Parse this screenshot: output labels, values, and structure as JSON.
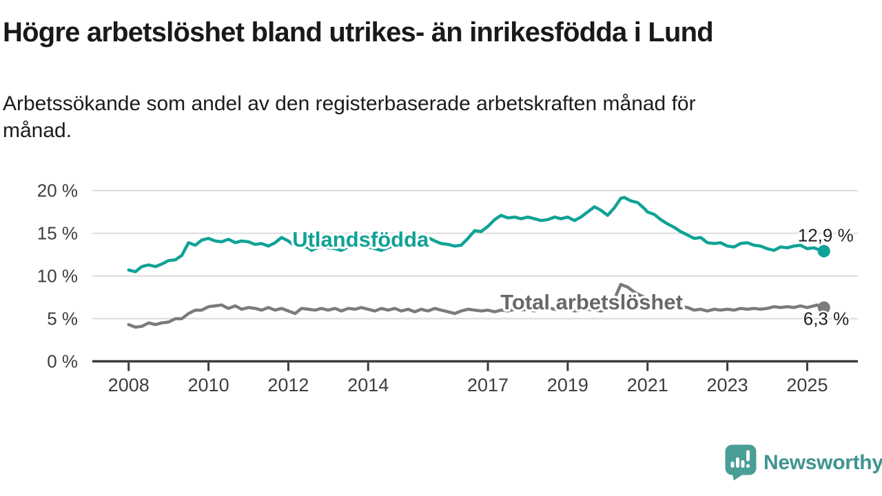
{
  "header": {
    "title": "Högre arbetslöshet bland utrikes- än inrikesfödda i Lund",
    "subtitle_line1": "Arbetssökande som andel av den registerbaserade arbetskraften månad för",
    "subtitle_line2": "månad."
  },
  "footer": {
    "brand": "Newsworthy",
    "logo_icon": "newsworthy-speech-bubble-bar-chart-icon",
    "brand_color": "#3f948e",
    "icon_color": "#4a9e97"
  },
  "chart_data": {
    "type": "line",
    "unit": "%",
    "grid": "horizontal",
    "x_axis": {
      "tick_years": [
        2008,
        2010,
        2012,
        2014,
        2017,
        2019,
        2021,
        2023,
        2025
      ],
      "range_years": [
        2007.09,
        2026.27
      ]
    },
    "y_axis": {
      "ticks": [
        {
          "label": "0 %",
          "value": 0
        },
        {
          "label": "5 %",
          "value": 5
        },
        {
          "label": "10 %",
          "value": 10
        },
        {
          "label": "15 %",
          "value": 15
        },
        {
          "label": "20 %",
          "value": 20
        }
      ],
      "range": [
        0,
        21
      ]
    },
    "series": [
      {
        "name": "Utlandsfödda",
        "color": "#10a296",
        "label_color": "#10a296",
        "end_label": "12,9 %",
        "end_label_side": "above",
        "name_label_pos": {
          "year": 2013.81,
          "value": 13.44
        },
        "points": [
          [
            2008.0,
            10.7
          ],
          [
            2008.17,
            10.5
          ],
          [
            2008.33,
            11.1
          ],
          [
            2008.5,
            11.3
          ],
          [
            2008.67,
            11.1
          ],
          [
            2008.83,
            11.4
          ],
          [
            2009.0,
            11.8
          ],
          [
            2009.17,
            11.9
          ],
          [
            2009.33,
            12.4
          ],
          [
            2009.5,
            13.9
          ],
          [
            2009.67,
            13.6
          ],
          [
            2009.83,
            14.2
          ],
          [
            2010.0,
            14.4
          ],
          [
            2010.17,
            14.1
          ],
          [
            2010.33,
            14.0
          ],
          [
            2010.5,
            14.3
          ],
          [
            2010.67,
            13.9
          ],
          [
            2010.83,
            14.1
          ],
          [
            2011.0,
            14.0
          ],
          [
            2011.17,
            13.7
          ],
          [
            2011.33,
            13.8
          ],
          [
            2011.5,
            13.5
          ],
          [
            2011.67,
            13.9
          ],
          [
            2011.83,
            14.5
          ],
          [
            2012.0,
            14.1
          ],
          [
            2012.17,
            13.5
          ],
          [
            2012.33,
            13.5
          ],
          [
            2012.5,
            13.3
          ],
          [
            2012.58,
            13.0
          ],
          [
            2012.67,
            13.2
          ],
          [
            2012.83,
            13.4
          ],
          [
            2013.0,
            13.3
          ],
          [
            2013.17,
            13.2
          ],
          [
            2013.33,
            13.0
          ],
          [
            2013.5,
            13.4
          ],
          [
            2013.67,
            13.6
          ],
          [
            2013.83,
            13.5
          ],
          [
            2014.0,
            13.4
          ],
          [
            2014.17,
            13.2
          ],
          [
            2014.33,
            13.0
          ],
          [
            2014.5,
            13.3
          ],
          [
            2014.67,
            13.6
          ],
          [
            2014.83,
            13.7
          ],
          [
            2015.0,
            13.9
          ],
          [
            2015.17,
            14.0
          ],
          [
            2015.33,
            14.2
          ],
          [
            2015.5,
            14.5
          ],
          [
            2015.67,
            14.1
          ],
          [
            2015.83,
            13.8
          ],
          [
            2016.0,
            13.7
          ],
          [
            2016.17,
            13.5
          ],
          [
            2016.33,
            13.6
          ],
          [
            2016.5,
            14.4
          ],
          [
            2016.67,
            15.3
          ],
          [
            2016.83,
            15.2
          ],
          [
            2017.0,
            15.8
          ],
          [
            2017.17,
            16.6
          ],
          [
            2017.33,
            17.1
          ],
          [
            2017.5,
            16.8
          ],
          [
            2017.67,
            16.9
          ],
          [
            2017.83,
            16.7
          ],
          [
            2018.0,
            16.9
          ],
          [
            2018.17,
            16.7
          ],
          [
            2018.33,
            16.5
          ],
          [
            2018.5,
            16.6
          ],
          [
            2018.67,
            16.9
          ],
          [
            2018.83,
            16.7
          ],
          [
            2019.0,
            16.9
          ],
          [
            2019.17,
            16.5
          ],
          [
            2019.33,
            16.9
          ],
          [
            2019.5,
            17.5
          ],
          [
            2019.67,
            18.1
          ],
          [
            2019.83,
            17.7
          ],
          [
            2020.0,
            17.1
          ],
          [
            2020.17,
            18.0
          ],
          [
            2020.33,
            19.1
          ],
          [
            2020.42,
            19.2
          ],
          [
            2020.58,
            18.8
          ],
          [
            2020.75,
            18.6
          ],
          [
            2020.92,
            17.9
          ],
          [
            2021.0,
            17.5
          ],
          [
            2021.17,
            17.2
          ],
          [
            2021.33,
            16.6
          ],
          [
            2021.5,
            16.1
          ],
          [
            2021.67,
            15.7
          ],
          [
            2021.83,
            15.2
          ],
          [
            2022.0,
            14.8
          ],
          [
            2022.17,
            14.4
          ],
          [
            2022.33,
            14.5
          ],
          [
            2022.5,
            13.9
          ],
          [
            2022.67,
            13.8
          ],
          [
            2022.83,
            13.9
          ],
          [
            2023.0,
            13.5
          ],
          [
            2023.17,
            13.4
          ],
          [
            2023.33,
            13.8
          ],
          [
            2023.5,
            13.9
          ],
          [
            2023.67,
            13.6
          ],
          [
            2023.83,
            13.5
          ],
          [
            2024.0,
            13.2
          ],
          [
            2024.17,
            13.0
          ],
          [
            2024.33,
            13.4
          ],
          [
            2024.5,
            13.3
          ],
          [
            2024.67,
            13.5
          ],
          [
            2024.83,
            13.6
          ],
          [
            2025.0,
            13.2
          ],
          [
            2025.17,
            13.3
          ],
          [
            2025.33,
            13.0
          ],
          [
            2025.42,
            12.9
          ]
        ]
      },
      {
        "name": "Total arbetslöshet",
        "color": "#7b7b7b",
        "label_color": "#67676c",
        "end_label": "6,3 %",
        "end_label_side": "below",
        "name_label_pos": {
          "year": 2019.6,
          "value": 6.09
        },
        "points": [
          [
            2008.0,
            4.3
          ],
          [
            2008.17,
            4.0
          ],
          [
            2008.33,
            4.1
          ],
          [
            2008.5,
            4.5
          ],
          [
            2008.67,
            4.3
          ],
          [
            2008.83,
            4.5
          ],
          [
            2009.0,
            4.6
          ],
          [
            2009.17,
            5.0
          ],
          [
            2009.33,
            5.0
          ],
          [
            2009.5,
            5.6
          ],
          [
            2009.67,
            6.0
          ],
          [
            2009.83,
            6.0
          ],
          [
            2010.0,
            6.4
          ],
          [
            2010.17,
            6.5
          ],
          [
            2010.33,
            6.6
          ],
          [
            2010.5,
            6.2
          ],
          [
            2010.67,
            6.5
          ],
          [
            2010.83,
            6.1
          ],
          [
            2011.0,
            6.3
          ],
          [
            2011.17,
            6.2
          ],
          [
            2011.33,
            6.0
          ],
          [
            2011.5,
            6.3
          ],
          [
            2011.67,
            6.0
          ],
          [
            2011.83,
            6.2
          ],
          [
            2012.0,
            5.9
          ],
          [
            2012.17,
            5.6
          ],
          [
            2012.33,
            6.2
          ],
          [
            2012.5,
            6.1
          ],
          [
            2012.67,
            6.0
          ],
          [
            2012.83,
            6.2
          ],
          [
            2013.0,
            6.0
          ],
          [
            2013.17,
            6.2
          ],
          [
            2013.33,
            5.9
          ],
          [
            2013.5,
            6.2
          ],
          [
            2013.67,
            6.1
          ],
          [
            2013.83,
            6.3
          ],
          [
            2014.0,
            6.1
          ],
          [
            2014.17,
            5.9
          ],
          [
            2014.33,
            6.2
          ],
          [
            2014.5,
            6.0
          ],
          [
            2014.67,
            6.2
          ],
          [
            2014.83,
            5.9
          ],
          [
            2015.0,
            6.1
          ],
          [
            2015.17,
            5.8
          ],
          [
            2015.33,
            6.1
          ],
          [
            2015.5,
            5.9
          ],
          [
            2015.67,
            6.2
          ],
          [
            2015.83,
            6.0
          ],
          [
            2016.0,
            5.8
          ],
          [
            2016.17,
            5.6
          ],
          [
            2016.33,
            5.9
          ],
          [
            2016.5,
            6.1
          ],
          [
            2016.67,
            6.0
          ],
          [
            2016.83,
            5.9
          ],
          [
            2017.0,
            6.0
          ],
          [
            2017.17,
            5.8
          ],
          [
            2017.33,
            6.0
          ],
          [
            2017.5,
            5.9
          ],
          [
            2017.67,
            6.1
          ],
          [
            2017.83,
            6.0
          ],
          [
            2018.0,
            6.1
          ],
          [
            2018.17,
            5.9
          ],
          [
            2018.33,
            6.2
          ],
          [
            2018.5,
            6.3
          ],
          [
            2018.67,
            6.1
          ],
          [
            2018.83,
            6.0
          ],
          [
            2019.0,
            6.1
          ],
          [
            2019.17,
            5.9
          ],
          [
            2019.33,
            6.0
          ],
          [
            2019.5,
            6.1
          ],
          [
            2019.67,
            6.0
          ],
          [
            2019.83,
            5.9
          ],
          [
            2020.0,
            6.1
          ],
          [
            2020.17,
            7.3
          ],
          [
            2020.33,
            9.0
          ],
          [
            2020.5,
            8.7
          ],
          [
            2020.67,
            8.1
          ],
          [
            2020.83,
            7.7
          ],
          [
            2021.0,
            7.4
          ],
          [
            2021.17,
            7.1
          ],
          [
            2021.33,
            6.9
          ],
          [
            2021.5,
            6.7
          ],
          [
            2021.67,
            6.5
          ],
          [
            2021.83,
            6.4
          ],
          [
            2022.0,
            6.3
          ],
          [
            2022.17,
            6.0
          ],
          [
            2022.33,
            6.1
          ],
          [
            2022.5,
            5.9
          ],
          [
            2022.67,
            6.1
          ],
          [
            2022.83,
            6.0
          ],
          [
            2023.0,
            6.1
          ],
          [
            2023.17,
            6.0
          ],
          [
            2023.33,
            6.2
          ],
          [
            2023.5,
            6.1
          ],
          [
            2023.67,
            6.2
          ],
          [
            2023.83,
            6.1
          ],
          [
            2024.0,
            6.2
          ],
          [
            2024.17,
            6.4
          ],
          [
            2024.33,
            6.3
          ],
          [
            2024.5,
            6.4
          ],
          [
            2024.67,
            6.3
          ],
          [
            2024.83,
            6.5
          ],
          [
            2025.0,
            6.3
          ],
          [
            2025.17,
            6.5
          ],
          [
            2025.25,
            6.6
          ],
          [
            2025.42,
            6.3
          ]
        ]
      }
    ]
  }
}
